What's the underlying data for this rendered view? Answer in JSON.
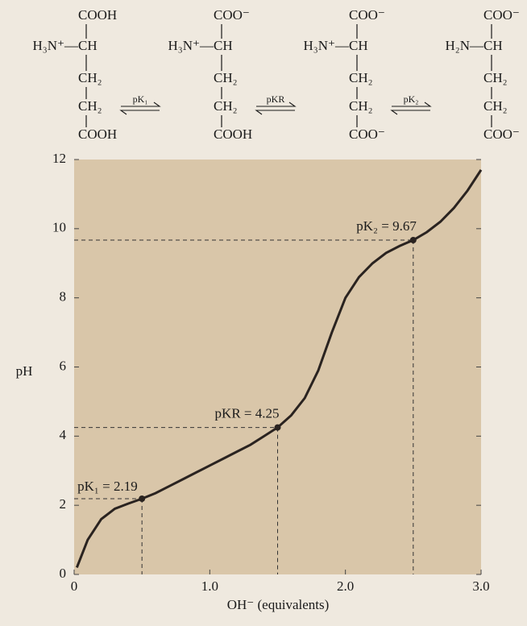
{
  "structures": [
    [
      "COOH",
      "H₃N⁺—",
      "CH",
      "CH₂",
      "CH₂",
      "COOH"
    ],
    [
      "COO⁻",
      "H₃N⁺—",
      "CH",
      "CH₂",
      "CH₂",
      "COOH"
    ],
    [
      "COO⁻",
      "H₃N⁺—",
      "CH",
      "CH₂",
      "CH₂",
      "COO⁻"
    ],
    [
      "COO⁻",
      "H₂N—",
      "CH",
      "CH₂",
      "CH₂",
      "COO⁻"
    ]
  ],
  "equilibria": [
    "pK₁",
    "pKR",
    "pK₂"
  ],
  "chart_data": {
    "type": "line",
    "x": [
      0.02,
      0.1,
      0.2,
      0.3,
      0.4,
      0.5,
      0.6,
      0.7,
      0.8,
      0.9,
      1.0,
      1.1,
      1.2,
      1.3,
      1.4,
      1.5,
      1.6,
      1.7,
      1.8,
      1.9,
      2.0,
      2.1,
      2.2,
      2.3,
      2.4,
      2.5,
      2.6,
      2.7,
      2.8,
      2.9,
      3.0
    ],
    "series": [
      {
        "color": "#2a2320",
        "values": [
          0.2,
          1.0,
          1.6,
          1.9,
          2.05,
          2.19,
          2.35,
          2.55,
          2.75,
          2.95,
          3.15,
          3.35,
          3.55,
          3.75,
          4.0,
          4.25,
          4.6,
          5.1,
          5.9,
          7.0,
          8.0,
          8.6,
          9.0,
          9.3,
          9.5,
          9.67,
          9.9,
          10.2,
          10.6,
          11.1,
          11.7
        ]
      }
    ],
    "points": [
      {
        "x": 0.5,
        "y": 2.19,
        "label": "pK₁ = 2.19"
      },
      {
        "x": 1.5,
        "y": 4.25,
        "label": "pKR = 4.25"
      },
      {
        "x": 2.5,
        "y": 9.67,
        "label": "pK₂ = 9.67"
      }
    ],
    "xlabel": "OH⁻ (equivalents)",
    "ylabel": "pH",
    "xlim": [
      0,
      3.0
    ],
    "ylim": [
      0,
      12
    ],
    "xticks": [
      0,
      {
        "value": 1,
        "label": "1.0"
      },
      {
        "value": 2,
        "label": "2.0"
      },
      {
        "value": 3,
        "label": "3.0"
      }
    ],
    "yticks": [
      0,
      2,
      4,
      6,
      8,
      10,
      12
    ],
    "background": "#d9c6a9"
  }
}
